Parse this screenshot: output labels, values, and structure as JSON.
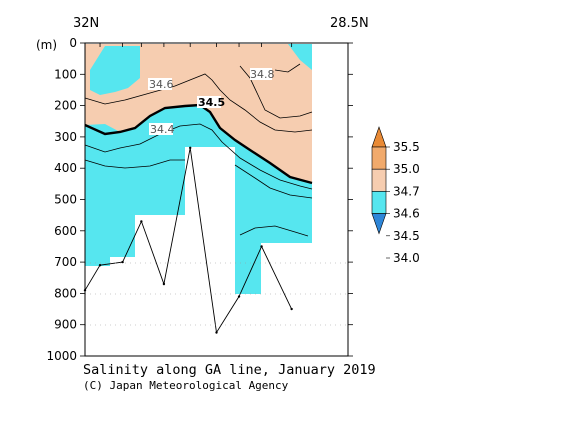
{
  "chart_data": {
    "type": "heatmap",
    "title": "Salinity along GA line, January 2019",
    "credit": "(C) Japan Meteorological Agency",
    "x_range_labels": {
      "left": "32N",
      "right": "28.5N"
    },
    "ylabel": "(m)",
    "ylim": [
      0,
      1000
    ],
    "y_ticks": [
      0,
      100,
      200,
      300,
      400,
      500,
      600,
      700,
      800,
      900,
      1000
    ],
    "colorbar": {
      "levels": [
        34.0,
        34.5,
        34.6,
        34.7,
        35.0,
        35.5
      ],
      "labels": [
        "35.5",
        "35.0",
        "34.7",
        "34.6",
        "34.5",
        "34.0"
      ],
      "colors": [
        "#2e86d8",
        "#56e6ef",
        "#f6cdb0",
        "#f1aa6c",
        "#e98a35"
      ]
    },
    "contour_labels": [
      "34.8",
      "34.6",
      "34.5",
      "34.4"
    ],
    "bottom_profile": [
      {
        "lat": 32.0,
        "depth": 790
      },
      {
        "lat": 31.8,
        "depth": 710
      },
      {
        "lat": 31.5,
        "depth": 700
      },
      {
        "lat": 31.25,
        "depth": 570
      },
      {
        "lat": 30.95,
        "depth": 770
      },
      {
        "lat": 30.6,
        "depth": 335
      },
      {
        "lat": 30.25,
        "depth": 925
      },
      {
        "lat": 29.95,
        "depth": 810
      },
      {
        "lat": 29.65,
        "depth": 650
      },
      {
        "lat": 29.25,
        "depth": 850
      }
    ]
  }
}
